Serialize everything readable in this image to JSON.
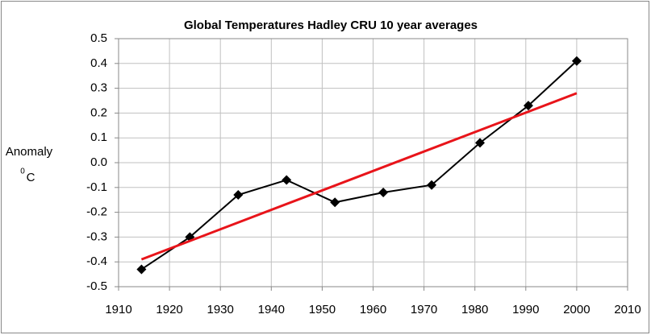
{
  "chart_data": {
    "type": "scatter",
    "title": "Global Temperatures Hadley CRU 10 year averages",
    "y_label": "Anomaly",
    "y_unit_sup": "0",
    "y_unit": "C",
    "series": [
      {
        "color": "#000000",
        "marker": "diamond",
        "x": [
          1914.5,
          1924,
          1933.5,
          1943,
          1952.5,
          1962,
          1971.5,
          1981,
          1990.5,
          2000
        ],
        "values": [
          -0.43,
          -0.3,
          -0.13,
          -0.07,
          -0.16,
          -0.12,
          -0.09,
          0.08,
          0.23,
          0.41
        ]
      },
      {
        "color": "#e8141a",
        "marker": "none",
        "x": [
          1914.5,
          2000
        ],
        "values": [
          -0.39,
          0.28
        ]
      }
    ],
    "xlim": [
      1910,
      2010
    ],
    "xticks": [
      1910,
      1920,
      1930,
      1940,
      1950,
      1960,
      1970,
      1980,
      1990,
      2000,
      2010
    ],
    "ylim": [
      -0.5,
      0.5
    ],
    "yticks": [
      -0.5,
      -0.4,
      -0.3,
      -0.2,
      -0.1,
      {
        "value": 0,
        "label": "0.0"
      },
      0.1,
      0.2,
      0.3,
      0.4,
      0.5
    ],
    "grid": true
  }
}
